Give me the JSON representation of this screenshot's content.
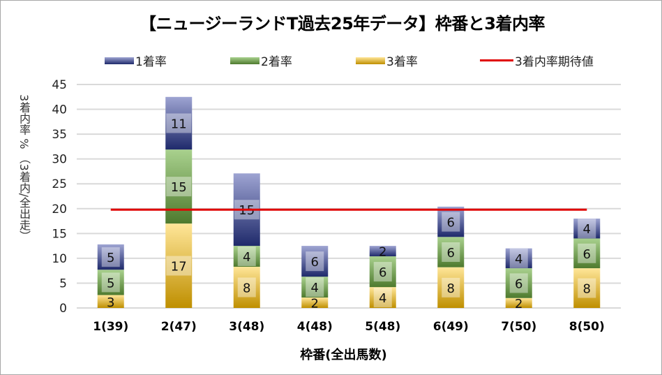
{
  "chart_data": {
    "type": "bar",
    "stacked": true,
    "title": "【ニュージーランドT過去25年データ】枠番と3着内率",
    "xlabel": "枠番(全出馬数)",
    "ylabel": "3着内率 % （3着内/全出走）",
    "ylim": [
      0,
      45
    ],
    "yticks": [
      0,
      5,
      10,
      15,
      20,
      25,
      30,
      35,
      40,
      45
    ],
    "grid": true,
    "legend_position": "top",
    "categories": [
      "1(39)",
      "2(47)",
      "3(48)",
      "4(48)",
      "5(48)",
      "6(49)",
      "7(50)",
      "8(50)"
    ],
    "series": [
      {
        "name": "3着率",
        "values": [
          2.6,
          17.0,
          8.3,
          2.1,
          4.2,
          8.2,
          2.0,
          8.0
        ],
        "labels": [
          "3",
          "17",
          "8",
          "2",
          "4",
          "8",
          "2",
          "8"
        ],
        "color_top": "#ffe699",
        "color_bottom": "#bf8f00"
      },
      {
        "name": "2着率",
        "values": [
          5.1,
          14.9,
          4.2,
          4.2,
          6.2,
          6.1,
          6.0,
          6.0
        ],
        "labels": [
          "5",
          "15",
          "4",
          "4",
          "6",
          "6",
          "6",
          "6"
        ],
        "color_top": "#a9d18e",
        "color_bottom": "#4e7a2e"
      },
      {
        "name": "1着率",
        "values": [
          5.1,
          10.6,
          14.6,
          6.2,
          2.1,
          6.1,
          4.0,
          4.0
        ],
        "labels": [
          "5",
          "11",
          "15",
          "6",
          "2",
          "6",
          "4",
          "4"
        ],
        "color_top": "#9ea4d2",
        "color_bottom": "#1f2a6b"
      }
    ],
    "reference_line": {
      "name": "3着内率期待値",
      "value": 19.8,
      "color": "#e00000"
    }
  },
  "legend": {
    "items": [
      "1着率",
      "2着率",
      "3着率",
      "3着内率期待値"
    ]
  }
}
